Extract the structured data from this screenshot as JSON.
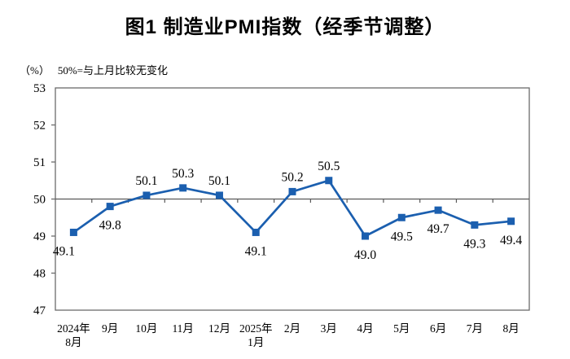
{
  "header": {
    "title": "图1  制造业PMI指数（经季节调整）"
  },
  "axis_note": {
    "unit": "（%）",
    "text": "50%=与上月比较无变化"
  },
  "chart_data": {
    "type": "line",
    "title": "图1  制造业PMI指数（经季节调整）",
    "ylabel": "（%）",
    "note": "50%=与上月比较无变化",
    "categories": [
      "2024年\n8月",
      "9月",
      "10月",
      "11月",
      "12月",
      "2025年\n1月",
      "2月",
      "3月",
      "4月",
      "5月",
      "6月",
      "7月",
      "8月"
    ],
    "values": [
      49.1,
      49.8,
      50.1,
      50.3,
      50.1,
      49.1,
      50.2,
      50.5,
      49.0,
      49.5,
      49.7,
      49.3,
      49.4
    ],
    "ylim": [
      47,
      53
    ],
    "yticks": [
      47,
      48,
      49,
      50,
      51,
      52,
      53
    ],
    "reference_value": 50,
    "grid": false,
    "legend": false,
    "marker": "square",
    "colors": {
      "series": "#1B5FAF",
      "axis": "#6B6B6B",
      "reference_line": "#595959",
      "text": "#000000"
    }
  }
}
